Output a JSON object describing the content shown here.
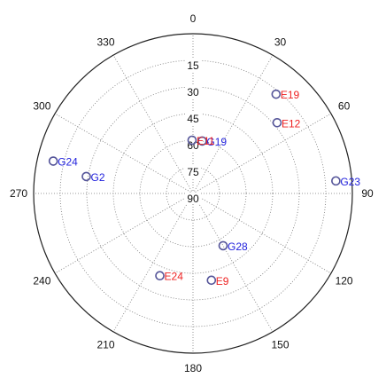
{
  "chart_data": {
    "type": "scatter",
    "plot_kind": "polar skyplot",
    "title": "",
    "grid": true,
    "angular_axis": {
      "zero_direction": "top",
      "direction": "clockwise",
      "tick_labels": [
        "0",
        "30",
        "60",
        "90",
        "120",
        "150",
        "180",
        "210",
        "240",
        "270",
        "300",
        "330"
      ]
    },
    "radial_axis": {
      "range": [
        0,
        90
      ],
      "reversed": true,
      "tick_labels": [
        "15",
        "30",
        "45",
        "60",
        "75",
        "90"
      ]
    },
    "points": [
      {
        "label": "G19",
        "azimuth": 10,
        "elevation": 60,
        "color": "#2222dd"
      },
      {
        "label": "E11",
        "azimuth": 359,
        "elevation": 60,
        "color": "#ee2222"
      },
      {
        "label": "E19",
        "azimuth": 40,
        "elevation": 17,
        "color": "#ee2222"
      },
      {
        "label": "E12",
        "azimuth": 50,
        "elevation": 28,
        "color": "#ee2222"
      },
      {
        "label": "G23",
        "azimuth": 85,
        "elevation": 9,
        "color": "#2222dd"
      },
      {
        "label": "G24",
        "azimuth": 283,
        "elevation": 9,
        "color": "#2222dd"
      },
      {
        "label": "G2",
        "azimuth": 279,
        "elevation": 29,
        "color": "#2222dd"
      },
      {
        "label": "G28",
        "azimuth": 150,
        "elevation": 56,
        "color": "#2222dd"
      },
      {
        "label": "E9",
        "azimuth": 168,
        "elevation": 40,
        "color": "#ee2222"
      },
      {
        "label": "E24",
        "azimuth": 202,
        "elevation": 40,
        "color": "#ee2222"
      }
    ],
    "marker": {
      "shape": "open-circle",
      "edge_color": "#555599"
    }
  }
}
